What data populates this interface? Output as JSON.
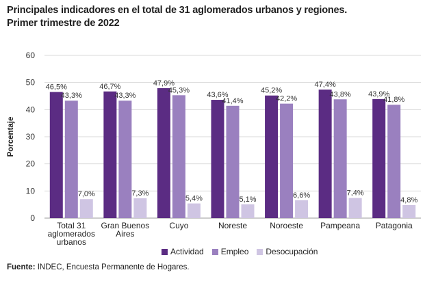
{
  "title_line1": "Principales indicadores en el total de 31 aglomerados urbanos y regiones.",
  "title_line2": "Primer trimestre de 2022",
  "source_label": "Fuente:",
  "source_text": "INDEC, Encuesta Permanente de Hogares.",
  "chart_data": {
    "type": "bar",
    "ylabel": "Porcentaje",
    "ylim": [
      0,
      60
    ],
    "yticks": [
      0,
      10,
      20,
      30,
      40,
      50,
      60
    ],
    "categories": [
      [
        "Total 31",
        "aglomerados",
        "urbanos"
      ],
      [
        "Gran Buenos",
        "Aires"
      ],
      [
        "Cuyo"
      ],
      [
        "Noreste"
      ],
      [
        "Noroeste"
      ],
      [
        "Pampeana"
      ],
      [
        "Patagonia"
      ]
    ],
    "series": [
      {
        "name": "Actividad",
        "color": "#5b2c83",
        "values": [
          46.5,
          46.7,
          47.9,
          43.6,
          45.2,
          47.4,
          43.9
        ],
        "labels": [
          "46,5%",
          "46,7%",
          "47,9%",
          "43,6%",
          "45,2%",
          "47,4%",
          "43,9%"
        ]
      },
      {
        "name": "Empleo",
        "color": "#9a80bf",
        "values": [
          43.3,
          43.3,
          45.3,
          41.4,
          42.2,
          43.8,
          41.8
        ],
        "labels": [
          "43,3%",
          "43,3%",
          "45,3%",
          "41,4%",
          "42,2%",
          "43,8%",
          "41,8%"
        ]
      },
      {
        "name": "Desocupación",
        "color": "#cfc5e3",
        "values": [
          7.0,
          7.3,
          5.4,
          5.1,
          6.6,
          7.4,
          4.8
        ],
        "labels": [
          "7,0%",
          "7,3%",
          "5,4%",
          "5,1%",
          "6,6%",
          "7,4%",
          "4,8%"
        ]
      }
    ],
    "grid": true,
    "legend": "bottom"
  }
}
